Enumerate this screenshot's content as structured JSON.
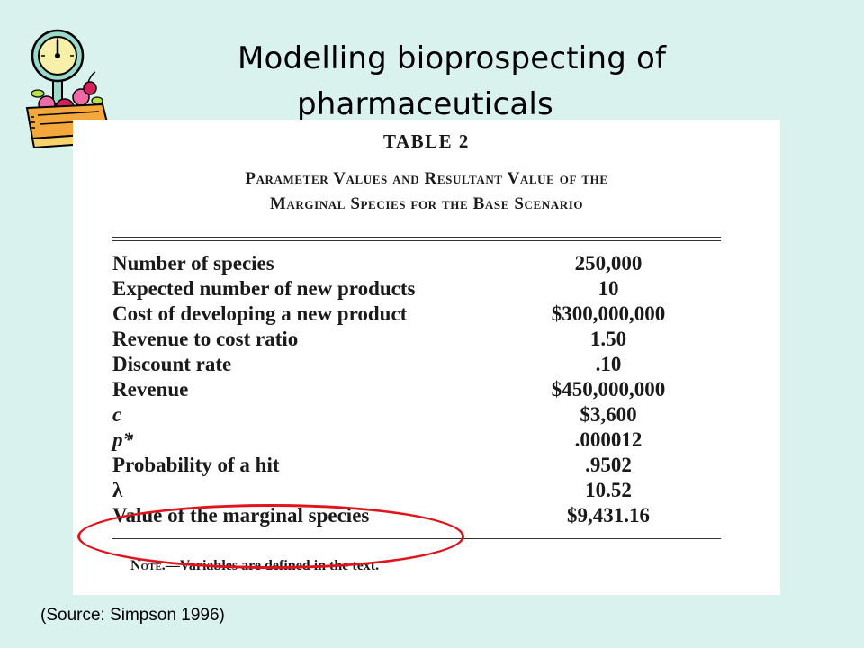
{
  "slide": {
    "title_line1": "Modelling bioprospecting of",
    "title_line2": "pharmaceuticals",
    "source": "(Source: Simpson 1996)",
    "clipart_icon": "scale-with-fruit-icon",
    "highlight_color": "#e0141a"
  },
  "table": {
    "title": "TABLE 2",
    "caption_line1": "Parameter Values and Resultant Value of the",
    "caption_line2": "Marginal Species for the Base Scenario",
    "rows": [
      {
        "label": "Number of species",
        "value": "250,000"
      },
      {
        "label": "Expected number of new products",
        "value": "10"
      },
      {
        "label": "Cost of developing a new product",
        "value": "$300,000,000"
      },
      {
        "label": "Revenue to cost ratio",
        "value": "1.50"
      },
      {
        "label": "Discount rate",
        "value": ".10"
      },
      {
        "label": "Revenue",
        "value": "$450,000,000"
      },
      {
        "label": "c",
        "value": "$3,600"
      },
      {
        "label": "p*",
        "value": ".000012"
      },
      {
        "label": "Probability of a hit",
        "value": ".9502"
      },
      {
        "label": "λ",
        "value": "10.52"
      },
      {
        "label": "Value of the marginal species",
        "value": "$9,431.16"
      }
    ],
    "note_prefix": "Note.",
    "note_text": "—Variables are defined in the text."
  }
}
